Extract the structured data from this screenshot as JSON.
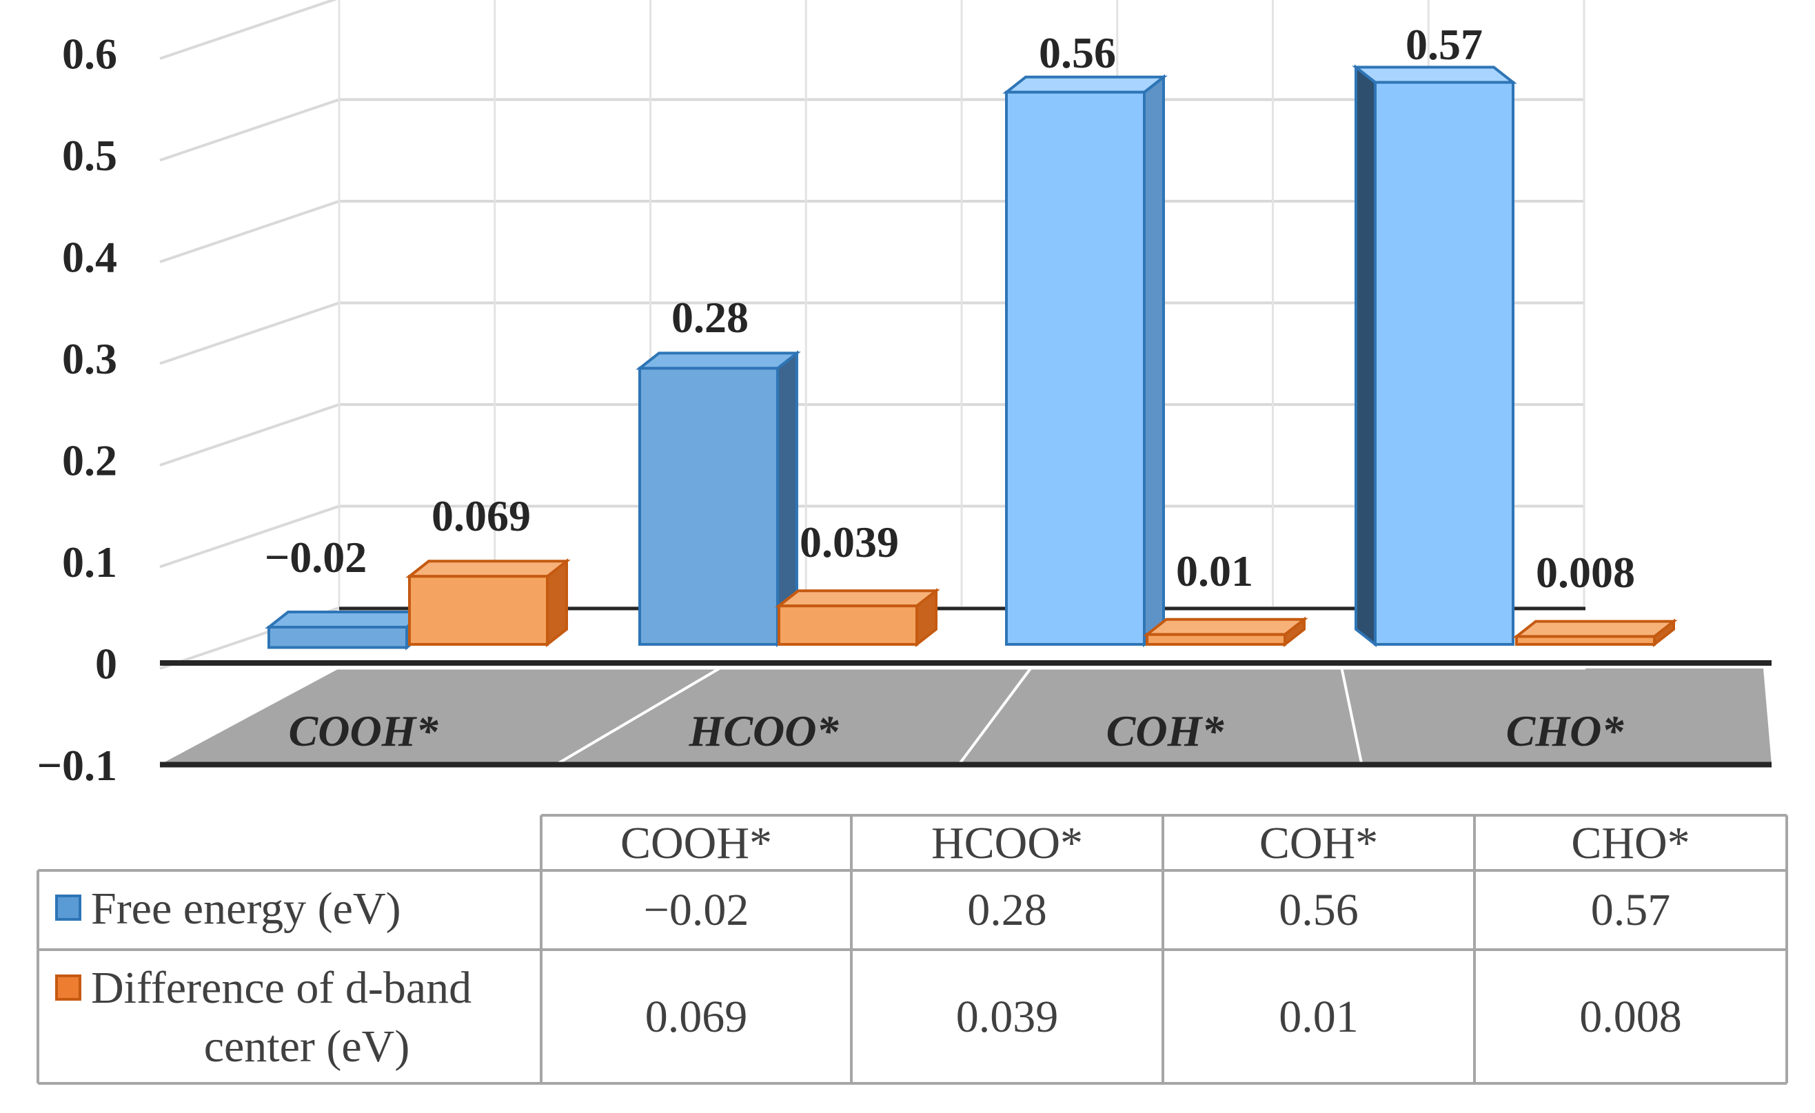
{
  "chart_data": {
    "type": "bar",
    "title": "",
    "xlabel": "",
    "ylabel": "",
    "categories": [
      "COOH*",
      "HCOO*",
      "COH*",
      "CHO*"
    ],
    "series": [
      {
        "name": "Free energy (eV)",
        "values": [
          -0.02,
          0.28,
          0.56,
          0.57
        ],
        "labels": [
          "−0.02",
          "0.28",
          "0.56",
          "0.57"
        ],
        "table_values": [
          "−0.02",
          "0.28",
          "0.56",
          "0.57"
        ],
        "color": "#5B9BD5"
      },
      {
        "name": "Difference of d-band center (eV)",
        "legend_lines": [
          "Difference of d-band",
          "center (eV)"
        ],
        "values": [
          0.069,
          0.039,
          0.01,
          0.008
        ],
        "labels": [
          "0.069",
          "0.039",
          "0.01",
          "0.008"
        ],
        "table_values": [
          "0.069",
          "0.039",
          "0.01",
          "0.008"
        ],
        "color": "#ED7D31"
      }
    ],
    "ylim": [
      -0.1,
      0.6
    ],
    "yticks": [
      0.6,
      0.5,
      0.4,
      0.3,
      0.2,
      0.1,
      0,
      -0.1
    ],
    "yticks_labels": [
      "0.6",
      "0.5",
      "0.4",
      "0.3",
      "0.2",
      "0.1",
      "0",
      "−0.1"
    ],
    "grid": true,
    "legend": "data table below chart"
  }
}
